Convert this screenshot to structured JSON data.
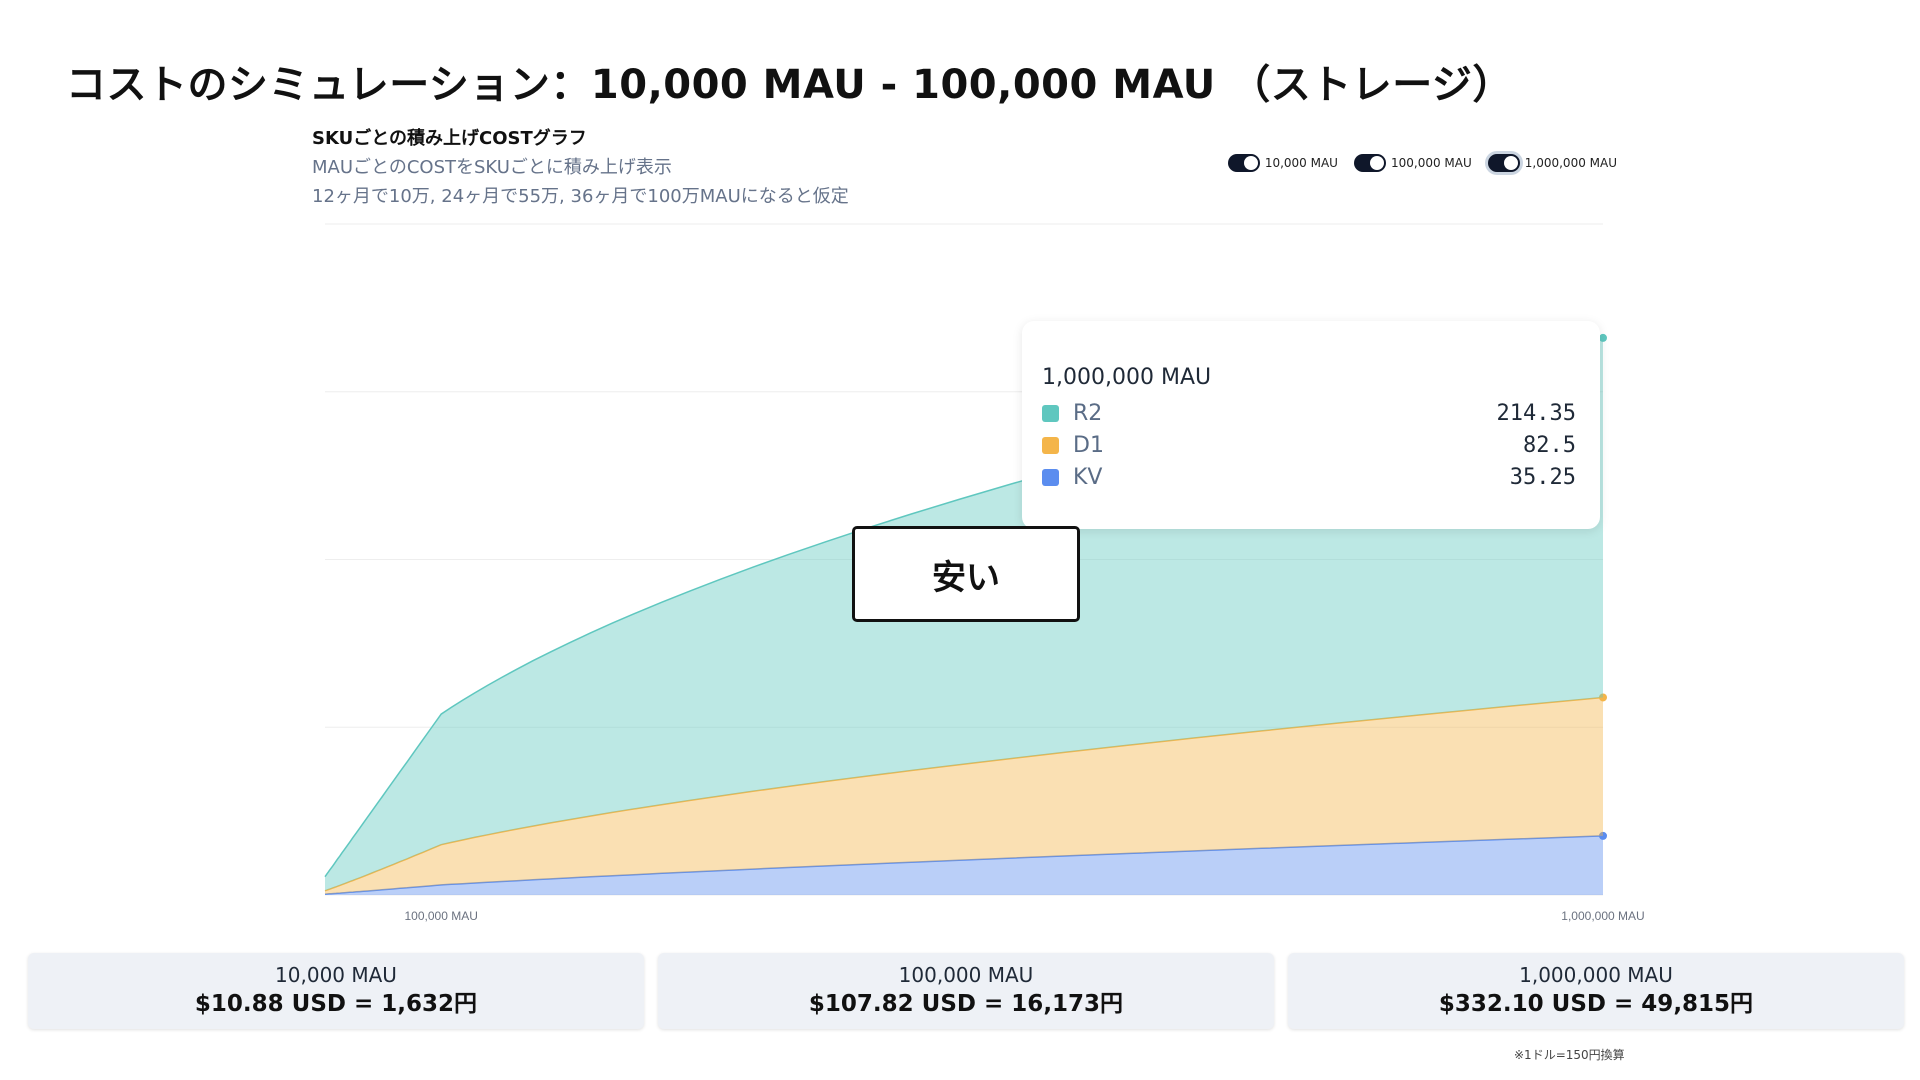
{
  "slide_title": "コストのシミュレーション：10,000 MAU - 100,000 MAU （ストレージ）",
  "card": {
    "title": "SKUごとの積み上げCOSTグラフ",
    "subtitle1": "MAUごとのCOSTをSKUごとに積み上げ表示",
    "subtitle2": "12ヶ月で10万, 24ヶ月で55万, 36ヶ月で100万MAUになると仮定"
  },
  "legend": [
    {
      "label": "10,000 MAU",
      "on": true
    },
    {
      "label": "100,000 MAU",
      "on": true
    },
    {
      "label": "1,000,000 MAU",
      "on": true
    }
  ],
  "callout": "安い",
  "tooltip": {
    "title": "1,000,000 MAU",
    "rows": [
      {
        "name": "R2",
        "value": "214.35",
        "color": "#5fc7bf"
      },
      {
        "name": "D1",
        "value": "82.5",
        "color": "#f4b54a"
      },
      {
        "name": "KV",
        "value": "35.25",
        "color": "#5b8def"
      }
    ]
  },
  "chart_data": {
    "type": "area",
    "stacked": true,
    "x_scale": "log",
    "x_range": [
      10000,
      1000000
    ],
    "x_ticks": [
      "100,000 MAU",
      "1,000,000 MAU"
    ],
    "ylim": [
      0,
      400
    ],
    "grid": "horizontal",
    "x": [
      10000,
      100000,
      1000000
    ],
    "series": [
      {
        "name": "KV",
        "color": "#5b8def",
        "values": [
          0.5,
          6.0,
          35.25
        ]
      },
      {
        "name": "D1",
        "color": "#f4b54a",
        "values": [
          2.0,
          24.0,
          82.5
        ]
      },
      {
        "name": "R2",
        "color": "#5fc7bf",
        "values": [
          8.38,
          77.82,
          214.35
        ]
      }
    ]
  },
  "summary": [
    {
      "label": "10,000 MAU",
      "value": "$10.88 USD = 1,632円"
    },
    {
      "label": "100,000 MAU",
      "value": "$107.82 USD = 16,173円"
    },
    {
      "label": "1,000,000 MAU",
      "value": "$332.10 USD = 49,815円"
    }
  ],
  "footnote": "※1ドル=150円換算"
}
